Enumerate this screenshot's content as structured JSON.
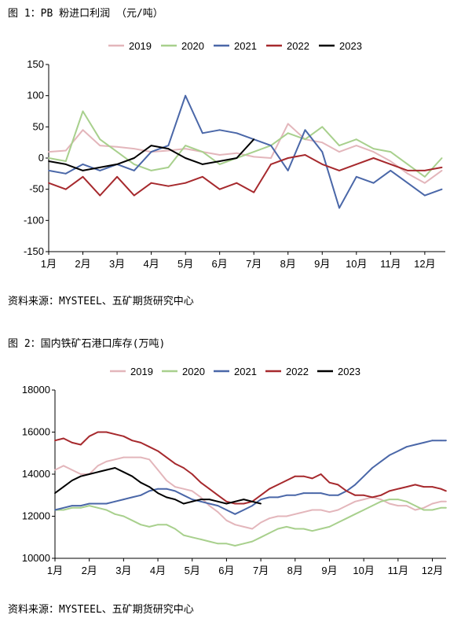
{
  "figure1": {
    "title": "图 1：PB 粉进口利润 （元/吨）",
    "source": "资料来源：MYSTEEL、五矿期货研究中心"
  },
  "figure2": {
    "title": "图 2：国内铁矿石港口库存(万吨)",
    "source": "资料来源：MYSTEEL、五矿期货研究中心"
  },
  "chart_data": [
    {
      "type": "line",
      "title": "",
      "xlabel": "",
      "ylabel": "",
      "x_ticks": [
        "1月",
        "2月",
        "3月",
        "4月",
        "5月",
        "6月",
        "7月",
        "8月",
        "9月",
        "10月",
        "11月",
        "12月"
      ],
      "x_range_months": [
        1,
        12.6
      ],
      "ylim": [
        -150,
        150
      ],
      "y_ticks": [
        150,
        100,
        50,
        0,
        -50,
        -100,
        -150
      ],
      "grid": false,
      "legend": "top",
      "x": [
        1.0,
        1.5,
        2.0,
        2.5,
        3.0,
        3.5,
        4.0,
        4.5,
        5.0,
        5.5,
        6.0,
        6.5,
        7.0,
        7.5,
        8.0,
        8.5,
        9.0,
        9.5,
        10.0,
        10.5,
        11.0,
        11.5,
        12.0,
        12.5
      ],
      "series": [
        {
          "name": "2019",
          "color": "#e3b6bb",
          "values": [
            10,
            12,
            45,
            20,
            18,
            15,
            10,
            12,
            15,
            10,
            5,
            8,
            2,
            0,
            55,
            30,
            25,
            10,
            20,
            10,
            -5,
            -25,
            -40,
            -20
          ]
        },
        {
          "name": "2020",
          "color": "#a8d08d",
          "values": [
            0,
            -5,
            75,
            30,
            10,
            -10,
            -20,
            -15,
            20,
            10,
            -10,
            0,
            10,
            20,
            40,
            30,
            50,
            20,
            30,
            15,
            10,
            -10,
            -30,
            0
          ]
        },
        {
          "name": "2021",
          "color": "#4a67a8",
          "values": [
            -20,
            -25,
            -10,
            -20,
            -10,
            -20,
            10,
            20,
            100,
            40,
            45,
            40,
            30,
            20,
            -20,
            45,
            10,
            -80,
            -30,
            -40,
            -20,
            -40,
            -60,
            -50
          ]
        },
        {
          "name": "2022",
          "color": "#a6292d",
          "values": [
            -40,
            -50,
            -30,
            -60,
            -30,
            -60,
            -40,
            -45,
            -40,
            -30,
            -50,
            -40,
            -55,
            -10,
            0,
            5,
            -10,
            -20,
            -10,
            0,
            -10,
            -20,
            -20,
            -15
          ]
        },
        {
          "name": "2023",
          "color": "#000000",
          "values": [
            -5,
            -10,
            -20,
            -15,
            -10,
            0,
            20,
            15,
            0,
            -10,
            -5,
            0,
            30,
            null,
            null,
            null,
            null,
            null,
            null,
            null,
            null,
            null,
            null,
            null
          ]
        }
      ]
    },
    {
      "type": "line",
      "title": "",
      "xlabel": "",
      "ylabel": "",
      "x_ticks": [
        "1月",
        "2月",
        "3月",
        "4月",
        "5月",
        "6月",
        "7月",
        "8月",
        "9月",
        "10月",
        "11月",
        "12月"
      ],
      "x_range_months": [
        1,
        12.4
      ],
      "ylim": [
        10000,
        18000
      ],
      "y_ticks": [
        18000,
        16000,
        14000,
        12000,
        10000
      ],
      "grid": false,
      "legend": "top",
      "x": [
        1.0,
        1.25,
        1.5,
        1.75,
        2.0,
        2.25,
        2.5,
        2.75,
        3.0,
        3.25,
        3.5,
        3.75,
        4.0,
        4.25,
        4.5,
        4.75,
        5.0,
        5.25,
        5.5,
        5.75,
        6.0,
        6.25,
        6.5,
        6.75,
        7.0,
        7.25,
        7.5,
        7.75,
        8.0,
        8.25,
        8.5,
        8.75,
        9.0,
        9.25,
        9.5,
        9.75,
        10.0,
        10.25,
        10.5,
        10.75,
        11.0,
        11.25,
        11.5,
        11.75,
        12.0,
        12.25,
        12.4
      ],
      "series": [
        {
          "name": "2019",
          "color": "#e3b6bb",
          "values": [
            14200,
            14400,
            14200,
            14000,
            14000,
            14400,
            14600,
            14700,
            14800,
            14800,
            14800,
            14700,
            14200,
            13700,
            13400,
            13300,
            13200,
            12900,
            12500,
            12200,
            11800,
            11600,
            11500,
            11400,
            11700,
            11900,
            12000,
            12000,
            12100,
            12200,
            12300,
            12300,
            12200,
            12300,
            12500,
            12700,
            12800,
            12900,
            12800,
            12600,
            12500,
            12500,
            12300,
            12400,
            12600,
            12700,
            12700
          ]
        },
        {
          "name": "2020",
          "color": "#a8d08d",
          "values": [
            12300,
            12300,
            12400,
            12400,
            12500,
            12400,
            12300,
            12100,
            12000,
            11800,
            11600,
            11500,
            11600,
            11600,
            11400,
            11100,
            11000,
            10900,
            10800,
            10700,
            10700,
            10600,
            10700,
            10800,
            11000,
            11200,
            11400,
            11500,
            11400,
            11400,
            11300,
            11400,
            11500,
            11700,
            11900,
            12100,
            12300,
            12500,
            12700,
            12800,
            12800,
            12700,
            12500,
            12300,
            12300,
            12400,
            12400
          ]
        },
        {
          "name": "2021",
          "color": "#4a67a8",
          "values": [
            12300,
            12400,
            12500,
            12500,
            12600,
            12600,
            12600,
            12700,
            12800,
            12900,
            13000,
            13200,
            13300,
            13300,
            13200,
            13000,
            12800,
            12700,
            12600,
            12500,
            12300,
            12100,
            12300,
            12500,
            12800,
            12900,
            12900,
            13000,
            13000,
            13100,
            13100,
            13100,
            13000,
            13000,
            13200,
            13500,
            13900,
            14300,
            14600,
            14900,
            15100,
            15300,
            15400,
            15500,
            15600,
            15600,
            15600
          ]
        },
        {
          "name": "2022",
          "color": "#a6292d",
          "values": [
            15600,
            15700,
            15500,
            15400,
            15800,
            16000,
            16000,
            15900,
            15800,
            15600,
            15500,
            15300,
            15100,
            14800,
            14500,
            14300,
            14000,
            13600,
            13300,
            13000,
            12700,
            12600,
            12600,
            12700,
            13000,
            13300,
            13500,
            13700,
            13900,
            13900,
            13800,
            14000,
            13600,
            13500,
            13200,
            13000,
            13000,
            12900,
            13000,
            13200,
            13300,
            13400,
            13500,
            13400,
            13400,
            13300,
            13200
          ]
        },
        {
          "name": "2023",
          "color": "#000000",
          "values": [
            13100,
            13400,
            13700,
            13900,
            14000,
            14100,
            14200,
            14300,
            14100,
            13900,
            13600,
            13400,
            13100,
            12900,
            12800,
            12600,
            12700,
            12800,
            12800,
            12700,
            12600,
            12700,
            12800,
            12700,
            12600,
            null,
            null,
            null,
            null,
            null,
            null,
            null,
            null,
            null,
            null,
            null,
            null,
            null,
            null,
            null,
            null,
            null,
            null,
            null,
            null,
            null,
            null
          ]
        }
      ]
    }
  ]
}
